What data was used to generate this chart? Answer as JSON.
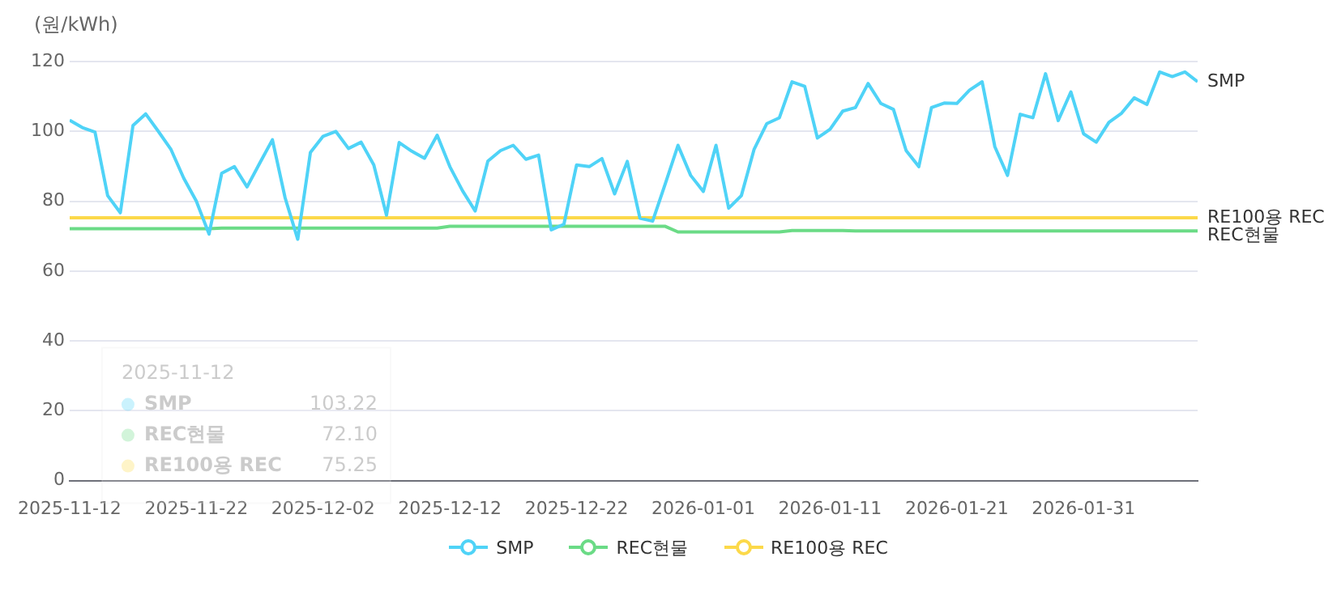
{
  "chart_data": {
    "type": "line",
    "ylabel": "(원/kWh)",
    "x": [
      "2025-11-12",
      "2025-11-13",
      "2025-11-14",
      "2025-11-15",
      "2025-11-16",
      "2025-11-17",
      "2025-11-18",
      "2025-11-19",
      "2025-11-20",
      "2025-11-21",
      "2025-11-22",
      "2025-11-23",
      "2025-11-24",
      "2025-11-25",
      "2025-11-26",
      "2025-11-27",
      "2025-11-28",
      "2025-11-29",
      "2025-11-30",
      "2025-12-01",
      "2025-12-02",
      "2025-12-03",
      "2025-12-04",
      "2025-12-05",
      "2025-12-06",
      "2025-12-07",
      "2025-12-08",
      "2025-12-09",
      "2025-12-10",
      "2025-12-11",
      "2025-12-12",
      "2025-12-13",
      "2025-12-14",
      "2025-12-15",
      "2025-12-16",
      "2025-12-17",
      "2025-12-18",
      "2025-12-19",
      "2025-12-20",
      "2025-12-21",
      "2025-12-22",
      "2025-12-23",
      "2025-12-24",
      "2025-12-25",
      "2025-12-26",
      "2025-12-27",
      "2025-12-28",
      "2025-12-29",
      "2025-12-30",
      "2025-12-31",
      "2026-01-01",
      "2026-01-02",
      "2026-01-03",
      "2026-01-04",
      "2026-01-05",
      "2026-01-06",
      "2026-01-07",
      "2026-01-08",
      "2026-01-09",
      "2026-01-10",
      "2026-01-11",
      "2026-01-12",
      "2026-01-13",
      "2026-01-14",
      "2026-01-15",
      "2026-01-16",
      "2026-01-17",
      "2026-01-18",
      "2026-01-19",
      "2026-01-20",
      "2026-01-21",
      "2026-01-22",
      "2026-01-23",
      "2026-01-24",
      "2026-01-25",
      "2026-01-26",
      "2026-01-27",
      "2026-01-28",
      "2026-01-29",
      "2026-01-30",
      "2026-01-31",
      "2026-02-01",
      "2026-02-02",
      "2026-02-03",
      "2026-02-04",
      "2026-02-05",
      "2026-02-06",
      "2026-02-07",
      "2026-02-08",
      "2026-02-09"
    ],
    "series": [
      {
        "name": "SMP",
        "color": "#4fd3f7",
        "values": [
          103.22,
          101.1,
          99.8,
          81.6,
          76.7,
          101.7,
          105,
          100,
          94.8,
          86.6,
          80,
          70.6,
          88,
          89.9,
          84.1,
          90.9,
          97.6,
          81,
          69.1,
          94,
          98.6,
          100,
          95.1,
          96.9,
          90.4,
          76,
          96.8,
          94.3,
          92.3,
          98.9,
          89.9,
          83,
          77.2,
          91.5,
          94.5,
          96,
          92,
          93.2,
          71.8,
          73.4,
          90.4,
          89.9,
          92.2,
          82.1,
          91.4,
          75.1,
          74.3,
          85,
          96,
          87.4,
          82.8,
          96,
          78,
          81.6,
          94.8,
          102.2,
          103.9,
          114.2,
          112.9,
          98.1,
          100.6,
          105.8,
          106.8,
          113.7,
          108,
          106.3,
          94.5,
          89.9,
          106.8,
          108.1,
          108,
          111.8,
          114.2,
          95.6,
          87.4,
          104.9,
          103.9,
          116.5,
          103.1,
          111.3,
          99.3,
          96.9,
          102.6,
          105.2,
          109.6,
          107.7,
          117,
          115.7,
          117,
          114.2
        ]
      },
      {
        "name": "REC현물",
        "color": "#6bdb86",
        "values": [
          72.1,
          72.1,
          72.1,
          72.1,
          72.1,
          72.1,
          72.1,
          72.1,
          72.1,
          72.1,
          72.1,
          72.1,
          72.3,
          72.3,
          72.3,
          72.3,
          72.3,
          72.3,
          72.3,
          72.3,
          72.3,
          72.3,
          72.3,
          72.3,
          72.3,
          72.3,
          72.3,
          72.3,
          72.3,
          72.3,
          72.8,
          72.8,
          72.8,
          72.8,
          72.8,
          72.8,
          72.8,
          72.8,
          72.8,
          72.8,
          72.8,
          72.8,
          72.8,
          72.8,
          72.8,
          72.8,
          72.8,
          72.8,
          71.2,
          71.2,
          71.2,
          71.2,
          71.2,
          71.2,
          71.2,
          71.2,
          71.2,
          71.6,
          71.6,
          71.6,
          71.6,
          71.6,
          71.5,
          71.5,
          71.5,
          71.5,
          71.5,
          71.5,
          71.5,
          71.5,
          71.5,
          71.5,
          71.5,
          71.5,
          71.5,
          71.5,
          71.5,
          71.5,
          71.5,
          71.5,
          71.5,
          71.5,
          71.5,
          71.5,
          71.5,
          71.5,
          71.5,
          71.5,
          71.5,
          71.5
        ]
      },
      {
        "name": "RE100용 REC",
        "color": "#fcd94a",
        "values": [
          75.25,
          75.25,
          75.25,
          75.25,
          75.25,
          75.25,
          75.25,
          75.25,
          75.25,
          75.25,
          75.25,
          75.25,
          75.25,
          75.25,
          75.25,
          75.25,
          75.25,
          75.25,
          75.25,
          75.25,
          75.25,
          75.25,
          75.25,
          75.25,
          75.25,
          75.25,
          75.25,
          75.25,
          75.25,
          75.25,
          75.25,
          75.25,
          75.25,
          75.25,
          75.25,
          75.25,
          75.25,
          75.25,
          75.25,
          75.25,
          75.25,
          75.25,
          75.25,
          75.25,
          75.25,
          75.25,
          75.25,
          75.25,
          75.25,
          75.25,
          75.25,
          75.25,
          75.25,
          75.25,
          75.25,
          75.25,
          75.25,
          75.25,
          75.25,
          75.25,
          75.25,
          75.25,
          75.25,
          75.25,
          75.25,
          75.25,
          75.25,
          75.25,
          75.25,
          75.25,
          75.25,
          75.25,
          75.25,
          75.25,
          75.25,
          75.25,
          75.25,
          75.25,
          75.25,
          75.25,
          75.25,
          75.25,
          75.25,
          75.25,
          75.25,
          75.25,
          75.25,
          75.25,
          75.25,
          75.25
        ]
      }
    ],
    "xlim": [
      "2025-11-12",
      "2026-02-09"
    ],
    "xticks": [
      "2025-11-12",
      "2025-11-22",
      "2025-12-02",
      "2025-12-12",
      "2025-12-22",
      "2026-01-01",
      "2026-01-11",
      "2026-01-21",
      "2026-01-31"
    ],
    "ylim": [
      0,
      120
    ],
    "yticks": [
      0,
      20,
      40,
      60,
      80,
      100,
      120
    ],
    "grid": "y",
    "legend": "bottom",
    "marker": "none",
    "line_style": "solid",
    "annotations": [
      "2025-11-12",
      "103.22",
      "72.10",
      "75.25"
    ]
  }
}
